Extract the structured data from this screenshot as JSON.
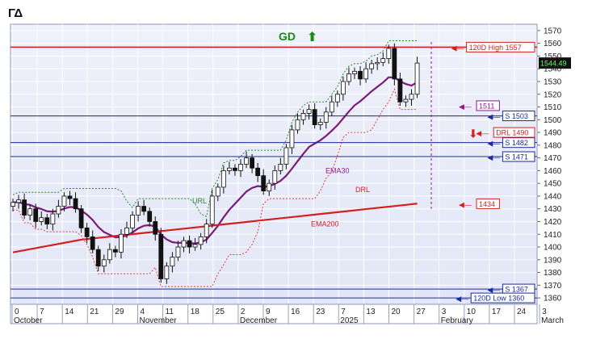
{
  "ticker": "ΓΔ",
  "chart_data": {
    "type": "candlestick",
    "signal": "GD",
    "signal_color": "#1a8a1a",
    "last_price": "1544.49",
    "ylim": [
      1355,
      1575
    ],
    "y_ticks": [
      1360,
      1370,
      1380,
      1390,
      1400,
      1410,
      1420,
      1430,
      1440,
      1450,
      1460,
      1470,
      1480,
      1490,
      1500,
      1510,
      1520,
      1530,
      1540,
      1550,
      1560,
      1570
    ],
    "x_ticks": [
      "0",
      "7",
      "14",
      "21",
      "29",
      "4",
      "11",
      "18",
      "25",
      "2",
      "9",
      "16",
      "23",
      "7",
      "13",
      "20",
      "27",
      "3",
      "10",
      "17",
      "24",
      "3"
    ],
    "months": [
      "October",
      "November",
      "December",
      "2025",
      "February",
      "March"
    ],
    "levels": [
      {
        "label": "120D High 1557",
        "value": 1557,
        "color": "#d42020"
      },
      {
        "label": "S 1503",
        "value": 1503,
        "color": "#1a2a9a"
      },
      {
        "label": "S 1482",
        "value": 1482,
        "color": "#1a2a9a"
      },
      {
        "label": "S 1471",
        "value": 1471,
        "color": "#1a2a9a"
      },
      {
        "label": "S 1367",
        "value": 1367,
        "color": "#1a2a9a"
      },
      {
        "label": "120D Low 1360",
        "value": 1360,
        "color": "#1a2a9a"
      }
    ],
    "markers": [
      {
        "label": "1511",
        "value": 1511,
        "color": "#8a1a8a"
      },
      {
        "label": "DRL 1490",
        "value": 1490,
        "color": "#d42020"
      },
      {
        "label": "1434",
        "value": 1434,
        "color": "#d42020"
      }
    ],
    "indicator_labels": {
      "url": "URL",
      "ema30": "EMA30",
      "drl": "DRL",
      "ema200": "EMA200"
    },
    "closes": [
      1435,
      1437,
      1425,
      1430,
      1420,
      1423,
      1418,
      1426,
      1432,
      1440,
      1438,
      1430,
      1415,
      1408,
      1398,
      1385,
      1390,
      1398,
      1396,
      1410,
      1415,
      1425,
      1432,
      1428,
      1420,
      1410,
      1375,
      1385,
      1392,
      1400,
      1405,
      1400,
      1402,
      1408,
      1418,
      1440,
      1447,
      1460,
      1462,
      1460,
      1465,
      1470,
      1462,
      1456,
      1444,
      1450,
      1460,
      1465,
      1478,
      1492,
      1500,
      1505,
      1508,
      1496,
      1498,
      1506,
      1514,
      1520,
      1530,
      1536,
      1538,
      1532,
      1540,
      1544,
      1545,
      1548,
      1556,
      1532,
      1514,
      1516,
      1520,
      1544.49
    ]
  }
}
